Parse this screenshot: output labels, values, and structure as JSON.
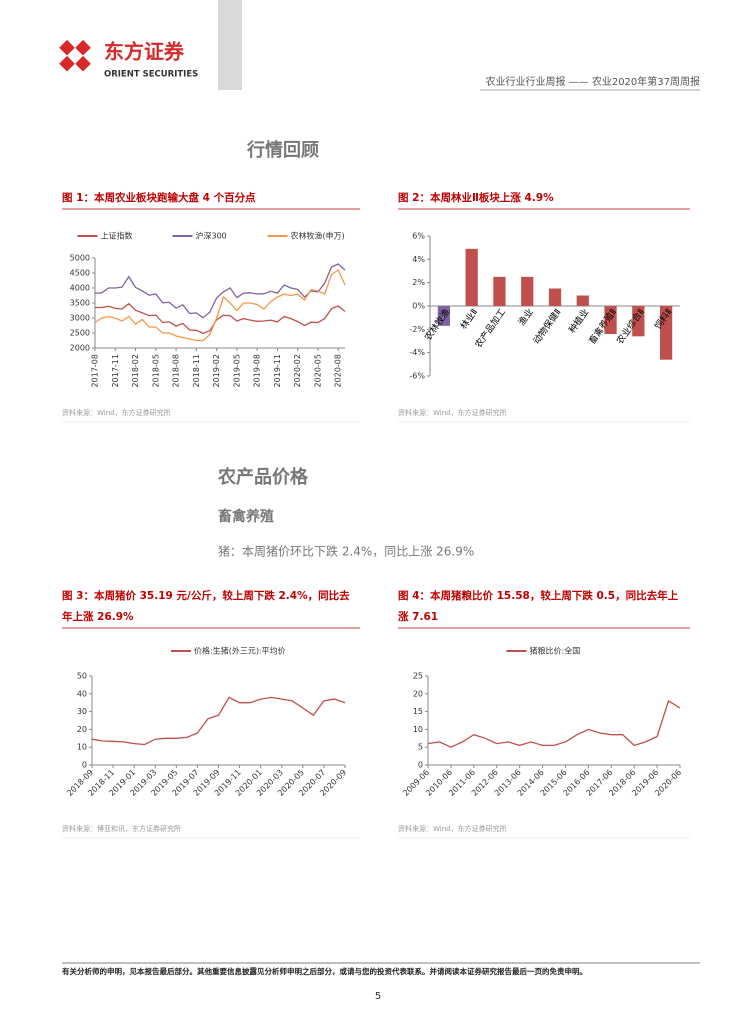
{
  "header": {
    "logo_cn": "东方证券",
    "logo_en": "ORIENT SECURITIES",
    "report": "农业行业行业周报 —— 农业2020年第37周周报"
  },
  "sections": [
    {
      "title": "行情回顾"
    },
    {
      "title": "农产品价格",
      "subtitle": "畜禽养殖",
      "text": "猪：本周猪价环比下跌 2.4%，同比上涨 26.9%"
    }
  ],
  "chart_data": [
    {
      "type": "line",
      "title": [
        "图 1：本周农业板块跑输大盘 4 个百分点"
      ],
      "source": "资料来源：Wind，东方证券研究所",
      "categories": [
        "2017-08",
        null,
        null,
        "2017-11",
        null,
        null,
        "2018-02",
        null,
        null,
        "2018-05",
        null,
        null,
        "2018-08",
        null,
        null,
        "2018-11",
        null,
        null,
        "2019-02",
        null,
        null,
        "2019-05",
        null,
        null,
        "2019-08",
        null,
        null,
        "2019-11",
        null,
        null,
        "2020-02",
        null,
        null,
        "2020-05",
        null,
        null,
        "2020-08",
        null
      ],
      "ylim": [
        2000,
        5000
      ],
      "yticks": [
        2000,
        2500,
        3000,
        3500,
        4000,
        4500,
        5000
      ],
      "series": [
        {
          "name": "上证指数",
          "color": "#c0504d",
          "values": [
            3350,
            3350,
            3390,
            3320,
            3300,
            3480,
            3260,
            3170,
            3080,
            3100,
            2850,
            2870,
            2730,
            2820,
            2600,
            2590,
            2490,
            2580,
            2940,
            3090,
            3080,
            2900,
            2980,
            2930,
            2890,
            2900,
            2930,
            2870,
            3050,
            2980,
            2880,
            2750,
            2860,
            2850,
            2980,
            3310,
            3400,
            3220
          ]
        },
        {
          "name": "沪深300",
          "color": "#8064a2",
          "values": [
            3830,
            3840,
            4000,
            4000,
            4030,
            4380,
            4020,
            3900,
            3760,
            3800,
            3510,
            3520,
            3330,
            3440,
            3150,
            3170,
            3010,
            3200,
            3670,
            3870,
            4000,
            3680,
            3830,
            3840,
            3800,
            3810,
            3890,
            3830,
            4100,
            4000,
            3950,
            3700,
            3900,
            3870,
            4160,
            4700,
            4800,
            4600
          ]
        },
        {
          "name": "农林牧渔(申万)",
          "color": "#f79646",
          "values": [
            2850,
            3000,
            3050,
            3000,
            2900,
            3050,
            2800,
            2950,
            2700,
            2700,
            2500,
            2500,
            2400,
            2350,
            2300,
            2250,
            2250,
            2450,
            3000,
            3700,
            3500,
            3250,
            3500,
            3500,
            3450,
            3300,
            3550,
            3700,
            3800,
            3750,
            3800,
            3600,
            3950,
            3900,
            3800,
            4450,
            4600,
            4100
          ]
        }
      ]
    },
    {
      "type": "bar",
      "title": [
        "图 2：本周林业Ⅱ板块上涨 4.9%"
      ],
      "source": "资料来源：Wind，东方证券研究所",
      "categories": [
        "农林牧渔",
        "林业Ⅱ",
        "农产品加工",
        "渔业",
        "动物保健Ⅱ",
        "种植业",
        "畜禽养殖Ⅱ",
        "农业综合Ⅱ",
        "饲料Ⅱ"
      ],
      "values": [
        -1.7,
        4.9,
        2.5,
        2.5,
        1.5,
        0.9,
        -2.4,
        -2.6,
        -4.6
      ],
      "colors": [
        "#8064a2",
        "#c0504d",
        "#c0504d",
        "#c0504d",
        "#c0504d",
        "#c0504d",
        "#c0504d",
        "#c0504d",
        "#c0504d"
      ],
      "ylim": [
        -6,
        6
      ],
      "yticks": [
        {
          "value": -6,
          "label": "-6%"
        },
        {
          "value": -4,
          "label": "-4%"
        },
        {
          "value": -2,
          "label": "-2%"
        },
        {
          "value": 0,
          "label": "0%"
        },
        {
          "value": 2,
          "label": "2%"
        },
        {
          "value": 4,
          "label": "4%"
        },
        {
          "value": 6,
          "label": "6%"
        }
      ]
    },
    {
      "type": "line",
      "title": [
        "图 3：本周猪价 35.19 元/公斤，较上周下跌 2.4%，同比去",
        "年上涨 26.9%"
      ],
      "source": "资料来源：博亚和讯，东方证券研究所",
      "categories": [
        "2018-09",
        null,
        "2018-11",
        null,
        "2019-01",
        null,
        "2019-03",
        null,
        "2019-05",
        null,
        "2019-07",
        null,
        "2019-09",
        null,
        "2019-11",
        null,
        "2020-01",
        null,
        "2020-03",
        null,
        "2020-05",
        null,
        "2020-07",
        null,
        "2020-09"
      ],
      "ylim": [
        0,
        50
      ],
      "yticks": [
        0,
        10,
        20,
        30,
        40,
        50
      ],
      "series": [
        {
          "name": "价格:生猪(外三元):平均价",
          "color": "#c0504d",
          "values": [
            14.5,
            13.5,
            13.3,
            13,
            12,
            11.5,
            14.5,
            15,
            15,
            15.5,
            18,
            26,
            28,
            38,
            35,
            35,
            37,
            38,
            37,
            36,
            32,
            28,
            36,
            37,
            35
          ]
        }
      ]
    },
    {
      "type": "line",
      "title": [
        "图 4：本周猪粮比价 15.58，较上周下跌 0.5，同比去年上",
        "涨 7.61"
      ],
      "source": "资料来源：Wind，东方证券研究所",
      "categories": [
        "2009-06",
        null,
        "2010-06",
        null,
        "2011-06",
        null,
        "2012-06",
        null,
        "2013-06",
        null,
        "2014-06",
        null,
        "2015-06",
        null,
        "2016-06",
        null,
        "2017-06",
        null,
        "2018-06",
        null,
        "2019-06",
        null,
        "2020-06"
      ],
      "ylim": [
        0,
        25
      ],
      "yticks": [
        0,
        5,
        10,
        15,
        20,
        25
      ],
      "series": [
        {
          "name": "猪粮比价:全国",
          "color": "#c0504d",
          "values": [
            6,
            6.5,
            5,
            6.5,
            8.5,
            7.5,
            6,
            6.5,
            5.5,
            6.5,
            5.5,
            5.5,
            6.5,
            8.5,
            10,
            9,
            8.5,
            8.5,
            5.5,
            6.5,
            8,
            18,
            16
          ]
        }
      ]
    }
  ],
  "footer": {
    "disclaimer": "有关分析师的申明，见本报告最后部分。其他重要信息披露见分析师申明之后部分，或请与您的投资代表联系。并请阅读本证券研究报告最后一页的免责申明。",
    "page": "5"
  }
}
